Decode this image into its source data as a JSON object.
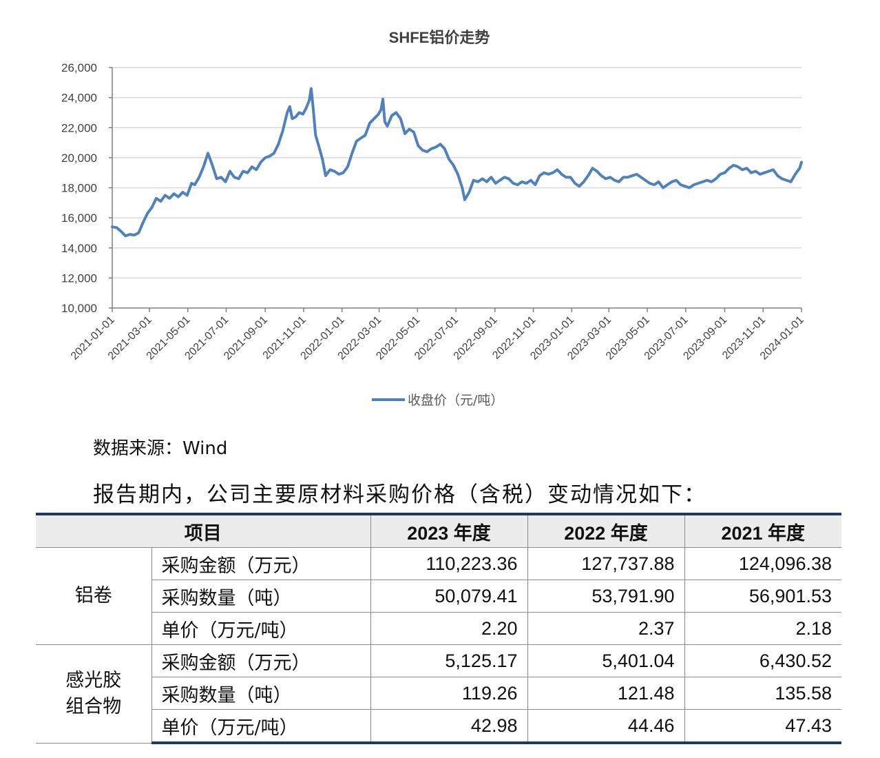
{
  "chart_data": {
    "type": "line",
    "title": "SHFE铝价走势",
    "series": [
      {
        "name": "收盘价（元/吨）",
        "color": "#4f81bd",
        "points": [
          [
            "2021-01-01",
            15400
          ],
          [
            "2021-01-08",
            15350
          ],
          [
            "2021-01-15",
            15100
          ],
          [
            "2021-01-22",
            14800
          ],
          [
            "2021-01-29",
            14900
          ],
          [
            "2021-02-05",
            14850
          ],
          [
            "2021-02-12",
            15000
          ],
          [
            "2021-02-19",
            15700
          ],
          [
            "2021-02-26",
            16300
          ],
          [
            "2021-03-05",
            16700
          ],
          [
            "2021-03-12",
            17300
          ],
          [
            "2021-03-19",
            17100
          ],
          [
            "2021-03-26",
            17500
          ],
          [
            "2021-04-02",
            17300
          ],
          [
            "2021-04-09",
            17600
          ],
          [
            "2021-04-16",
            17400
          ],
          [
            "2021-04-23",
            17700
          ],
          [
            "2021-04-30",
            17500
          ],
          [
            "2021-05-07",
            18300
          ],
          [
            "2021-05-12",
            18200
          ],
          [
            "2021-05-19",
            18700
          ],
          [
            "2021-05-26",
            19400
          ],
          [
            "2021-06-02",
            20300
          ],
          [
            "2021-06-09",
            19500
          ],
          [
            "2021-06-16",
            18600
          ],
          [
            "2021-06-23",
            18700
          ],
          [
            "2021-06-30",
            18400
          ],
          [
            "2021-07-07",
            19100
          ],
          [
            "2021-07-14",
            18700
          ],
          [
            "2021-07-21",
            18600
          ],
          [
            "2021-07-28",
            19100
          ],
          [
            "2021-08-04",
            19000
          ],
          [
            "2021-08-11",
            19400
          ],
          [
            "2021-08-18",
            19200
          ],
          [
            "2021-08-25",
            19700
          ],
          [
            "2021-09-01",
            20000
          ],
          [
            "2021-09-08",
            20100
          ],
          [
            "2021-09-15",
            20300
          ],
          [
            "2021-09-22",
            20900
          ],
          [
            "2021-09-29",
            21800
          ],
          [
            "2021-10-06",
            23000
          ],
          [
            "2021-10-10",
            23400
          ],
          [
            "2021-10-14",
            22600
          ],
          [
            "2021-10-19",
            22700
          ],
          [
            "2021-10-25",
            23000
          ],
          [
            "2021-10-31",
            22900
          ],
          [
            "2021-11-05",
            23300
          ],
          [
            "2021-11-10",
            23800
          ],
          [
            "2021-11-13",
            24600
          ],
          [
            "2021-11-16",
            23400
          ],
          [
            "2021-11-20",
            21500
          ],
          [
            "2021-11-25",
            20800
          ],
          [
            "2021-12-01",
            19900
          ],
          [
            "2021-12-06",
            18800
          ],
          [
            "2021-12-13",
            19200
          ],
          [
            "2021-12-20",
            19100
          ],
          [
            "2021-12-27",
            18900
          ],
          [
            "2022-01-03",
            19000
          ],
          [
            "2022-01-10",
            19400
          ],
          [
            "2022-01-17",
            20300
          ],
          [
            "2022-01-24",
            21100
          ],
          [
            "2022-01-31",
            21300
          ],
          [
            "2022-02-07",
            21500
          ],
          [
            "2022-02-14",
            22300
          ],
          [
            "2022-02-21",
            22600
          ],
          [
            "2022-02-28",
            22900
          ],
          [
            "2022-03-04",
            23200
          ],
          [
            "2022-03-07",
            23900
          ],
          [
            "2022-03-10",
            22400
          ],
          [
            "2022-03-14",
            22100
          ],
          [
            "2022-03-21",
            22800
          ],
          [
            "2022-03-28",
            23000
          ],
          [
            "2022-04-04",
            22600
          ],
          [
            "2022-04-11",
            21600
          ],
          [
            "2022-04-18",
            21900
          ],
          [
            "2022-04-25",
            21700
          ],
          [
            "2022-05-02",
            20800
          ],
          [
            "2022-05-09",
            20500
          ],
          [
            "2022-05-16",
            20400
          ],
          [
            "2022-05-23",
            20600
          ],
          [
            "2022-05-30",
            20700
          ],
          [
            "2022-06-06",
            20900
          ],
          [
            "2022-06-13",
            20600
          ],
          [
            "2022-06-20",
            19900
          ],
          [
            "2022-06-27",
            19500
          ],
          [
            "2022-07-04",
            18900
          ],
          [
            "2022-07-11",
            18000
          ],
          [
            "2022-07-15",
            17200
          ],
          [
            "2022-07-22",
            17700
          ],
          [
            "2022-07-29",
            18500
          ],
          [
            "2022-08-05",
            18400
          ],
          [
            "2022-08-12",
            18600
          ],
          [
            "2022-08-19",
            18400
          ],
          [
            "2022-08-26",
            18700
          ],
          [
            "2022-09-02",
            18300
          ],
          [
            "2022-09-09",
            18500
          ],
          [
            "2022-09-16",
            18700
          ],
          [
            "2022-09-23",
            18600
          ],
          [
            "2022-09-30",
            18300
          ],
          [
            "2022-10-07",
            18200
          ],
          [
            "2022-10-14",
            18400
          ],
          [
            "2022-10-21",
            18300
          ],
          [
            "2022-10-28",
            18500
          ],
          [
            "2022-11-04",
            18200
          ],
          [
            "2022-11-11",
            18800
          ],
          [
            "2022-11-18",
            19000
          ],
          [
            "2022-11-25",
            18900
          ],
          [
            "2022-12-02",
            19000
          ],
          [
            "2022-12-09",
            19200
          ],
          [
            "2022-12-16",
            18900
          ],
          [
            "2022-12-23",
            18700
          ],
          [
            "2022-12-30",
            18700
          ],
          [
            "2023-01-06",
            18300
          ],
          [
            "2023-01-13",
            18100
          ],
          [
            "2023-01-20",
            18400
          ],
          [
            "2023-01-27",
            18800
          ],
          [
            "2023-02-03",
            19300
          ],
          [
            "2023-02-10",
            19100
          ],
          [
            "2023-02-17",
            18800
          ],
          [
            "2023-02-24",
            18600
          ],
          [
            "2023-03-03",
            18700
          ],
          [
            "2023-03-10",
            18500
          ],
          [
            "2023-03-17",
            18400
          ],
          [
            "2023-03-24",
            18700
          ],
          [
            "2023-03-31",
            18700
          ],
          [
            "2023-04-07",
            18800
          ],
          [
            "2023-04-14",
            18900
          ],
          [
            "2023-04-21",
            18700
          ],
          [
            "2023-04-28",
            18500
          ],
          [
            "2023-05-05",
            18300
          ],
          [
            "2023-05-12",
            18200
          ],
          [
            "2023-05-19",
            18400
          ],
          [
            "2023-05-26",
            18000
          ],
          [
            "2023-06-02",
            18200
          ],
          [
            "2023-06-09",
            18400
          ],
          [
            "2023-06-16",
            18500
          ],
          [
            "2023-06-23",
            18200
          ],
          [
            "2023-06-30",
            18100
          ],
          [
            "2023-07-07",
            18000
          ],
          [
            "2023-07-14",
            18200
          ],
          [
            "2023-07-21",
            18300
          ],
          [
            "2023-07-28",
            18400
          ],
          [
            "2023-08-04",
            18500
          ],
          [
            "2023-08-11",
            18400
          ],
          [
            "2023-08-18",
            18600
          ],
          [
            "2023-08-25",
            18900
          ],
          [
            "2023-09-01",
            19000
          ],
          [
            "2023-09-08",
            19300
          ],
          [
            "2023-09-15",
            19500
          ],
          [
            "2023-09-22",
            19400
          ],
          [
            "2023-09-29",
            19200
          ],
          [
            "2023-10-06",
            19300
          ],
          [
            "2023-10-13",
            19000
          ],
          [
            "2023-10-20",
            19100
          ],
          [
            "2023-10-27",
            18900
          ],
          [
            "2023-11-03",
            19000
          ],
          [
            "2023-11-10",
            19100
          ],
          [
            "2023-11-17",
            19200
          ],
          [
            "2023-11-24",
            18800
          ],
          [
            "2023-12-01",
            18600
          ],
          [
            "2023-12-08",
            18500
          ],
          [
            "2023-12-15",
            18400
          ],
          [
            "2023-12-22",
            18900
          ],
          [
            "2023-12-29",
            19300
          ],
          [
            "2024-01-01",
            19700
          ]
        ]
      }
    ],
    "ylim": [
      10000,
      26000
    ],
    "xlim": [
      "2021-01-01",
      "2024-01-01"
    ],
    "y_ticks": [
      "10,000",
      "12,000",
      "14,000",
      "16,000",
      "18,000",
      "20,000",
      "22,000",
      "24,000",
      "26,000"
    ],
    "y_tick_values": [
      10000,
      12000,
      14000,
      16000,
      18000,
      20000,
      22000,
      24000,
      26000
    ],
    "x_ticks": [
      "2021-01-01",
      "2021-03-01",
      "2021-05-01",
      "2021-07-01",
      "2021-09-01",
      "2021-11-01",
      "2022-01-01",
      "2022-03-01",
      "2022-05-01",
      "2022-07-01",
      "2022-09-01",
      "2022-11-01",
      "2023-01-01",
      "2023-03-01",
      "2023-05-01",
      "2023-07-01",
      "2023-09-01",
      "2023-11-01",
      "2024-01-01"
    ],
    "grid": true,
    "legend_position": "bottom"
  },
  "source_note": "数据来源：Wind",
  "intro_text": "报告期内，公司主要原材料采购价格（含税）变动情况如下：",
  "table": {
    "header": {
      "item": "项目",
      "y2023": "2023 年度",
      "y2022": "2022 年度",
      "y2021": "2021 年度"
    },
    "groups": [
      {
        "name": "铝卷",
        "rows": [
          {
            "item": "采购金额（万元）",
            "y2023": "110,223.36",
            "y2022": "127,737.88",
            "y2021": "124,096.38"
          },
          {
            "item": "采购数量（吨）",
            "y2023": "50,079.41",
            "y2022": "53,791.90",
            "y2021": "56,901.53"
          },
          {
            "item": "单价（万元/吨）",
            "y2023": "2.20",
            "y2022": "2.37",
            "y2021": "2.18"
          }
        ]
      },
      {
        "name_line1": "感光胶",
        "name_line2": "组合物",
        "rows": [
          {
            "item": "采购金额（万元）",
            "y2023": "5,125.17",
            "y2022": "5,401.04",
            "y2021": "6,430.52"
          },
          {
            "item": "采购数量（吨）",
            "y2023": "119.26",
            "y2022": "121.48",
            "y2021": "135.58"
          },
          {
            "item": "单价（万元/吨）",
            "y2023": "42.98",
            "y2022": "44.46",
            "y2021": "47.43"
          }
        ]
      }
    ]
  }
}
